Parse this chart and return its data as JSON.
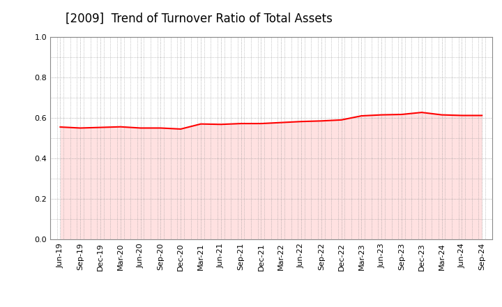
{
  "title": "[2009]  Trend of Turnover Ratio of Total Assets",
  "x_labels": [
    "Jun-19",
    "Sep-19",
    "Dec-19",
    "Mar-20",
    "Jun-20",
    "Sep-20",
    "Dec-20",
    "Mar-21",
    "Jun-21",
    "Sep-21",
    "Dec-21",
    "Mar-22",
    "Jun-22",
    "Sep-22",
    "Dec-22",
    "Mar-23",
    "Jun-23",
    "Sep-23",
    "Dec-23",
    "Mar-24",
    "Jun-24",
    "Sep-24"
  ],
  "y_values": [
    0.555,
    0.55,
    0.553,
    0.556,
    0.55,
    0.55,
    0.545,
    0.57,
    0.568,
    0.572,
    0.572,
    0.577,
    0.582,
    0.585,
    0.59,
    0.61,
    0.615,
    0.617,
    0.627,
    0.615,
    0.612,
    0.612
  ],
  "line_color": "#FF0000",
  "line_width": 1.5,
  "fill_color": "#FFAAAA",
  "fill_alpha": 0.35,
  "ylim": [
    0.0,
    1.0
  ],
  "yticks": [
    0.0,
    0.2,
    0.4,
    0.6,
    0.8,
    1.0
  ],
  "background_color": "#FFFFFF",
  "grid_color": "#999999",
  "title_fontsize": 12,
  "axis_fontsize": 8,
  "minor_per_major": 3
}
